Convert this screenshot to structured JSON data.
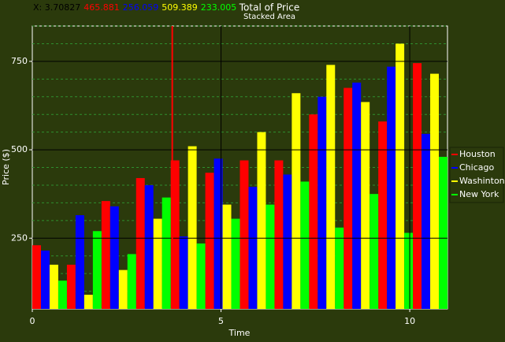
{
  "chart_data": {
    "type": "bar",
    "title": "Total of Price",
    "subtitle": "Stacked Area",
    "x_label": "Time",
    "y_label": "Price ($)",
    "categories": [
      null,
      null,
      null,
      null,
      null,
      null,
      null,
      null,
      null,
      null,
      null,
      null
    ],
    "series": [
      {
        "name": "Houston",
        "color": "#ff0000",
        "values": [
          230,
          175,
          355,
          420,
          470,
          435,
          470,
          470,
          600,
          675,
          580,
          745
        ]
      },
      {
        "name": "Chicago",
        "color": "#0000ff",
        "values": [
          215,
          315,
          340,
          400,
          255,
          475,
          395,
          430,
          650,
          690,
          735,
          545
        ]
      },
      {
        "name": "Washinton",
        "color": "#ffff00",
        "values": [
          175,
          90,
          160,
          305,
          510,
          345,
          550,
          660,
          740,
          635,
          800,
          715
        ]
      },
      {
        "name": "New York",
        "color": "#00ff00",
        "values": [
          130,
          270,
          205,
          365,
          235,
          305,
          345,
          410,
          280,
          375,
          265,
          480
        ]
      }
    ],
    "xlim": [
      0,
      11
    ],
    "xticks": [
      0,
      5,
      10
    ],
    "ylim": [
      50,
      850
    ],
    "yticks": [
      250,
      500,
      750
    ],
    "minor_yticks": [
      100,
      150,
      200,
      300,
      350,
      400,
      450,
      550,
      600,
      650,
      700,
      800,
      850
    ],
    "grid": true,
    "legend": "right",
    "cursor": {
      "x": {
        "value": 3.70827,
        "label": "X: 3.70827"
      },
      "color": "#ff0000",
      "values": [
        465.881,
        256.059,
        509.389,
        233.005
      ]
    }
  }
}
